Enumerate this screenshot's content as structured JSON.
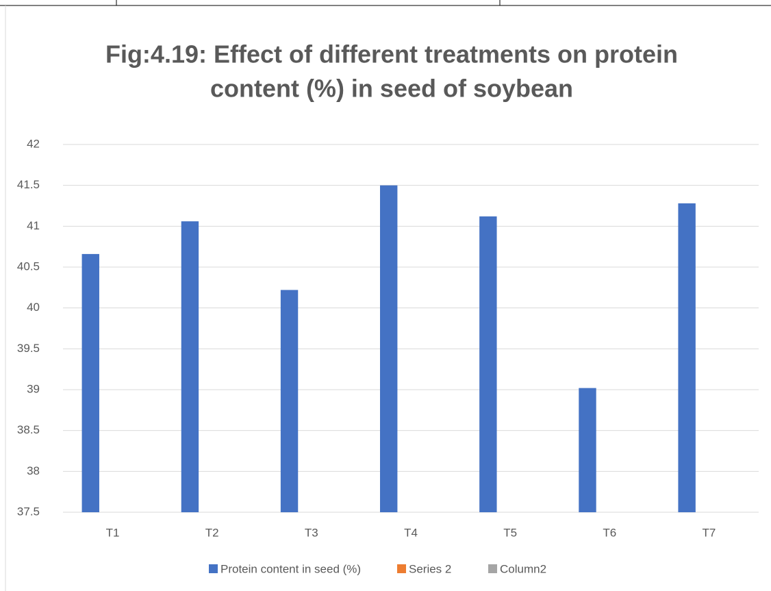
{
  "chart_data": {
    "type": "bar",
    "title": [
      "Fig:4.19: Effect of different treatments on protein",
      "content (%) in seed of soybean"
    ],
    "categories": [
      "T1",
      "T2",
      "T3",
      "T4",
      "T5",
      "T6",
      "T7"
    ],
    "series": [
      {
        "name": "Protein content in seed (%)",
        "color": "#4472c4",
        "values": [
          40.66,
          41.06,
          40.22,
          41.5,
          41.12,
          39.02,
          41.28
        ]
      },
      {
        "name": "Series 2",
        "color": "#ed7d31",
        "values": [
          null,
          null,
          null,
          null,
          null,
          null,
          null
        ]
      },
      {
        "name": "Column2",
        "color": "#a5a5a5",
        "values": [
          null,
          null,
          null,
          null,
          null,
          null,
          null
        ]
      }
    ],
    "ylim": [
      37.5,
      42
    ],
    "yticks": [
      37.5,
      38,
      38.5,
      39,
      39.5,
      40,
      40.5,
      41,
      41.5,
      42
    ],
    "grid": true,
    "legend": "bottom"
  }
}
